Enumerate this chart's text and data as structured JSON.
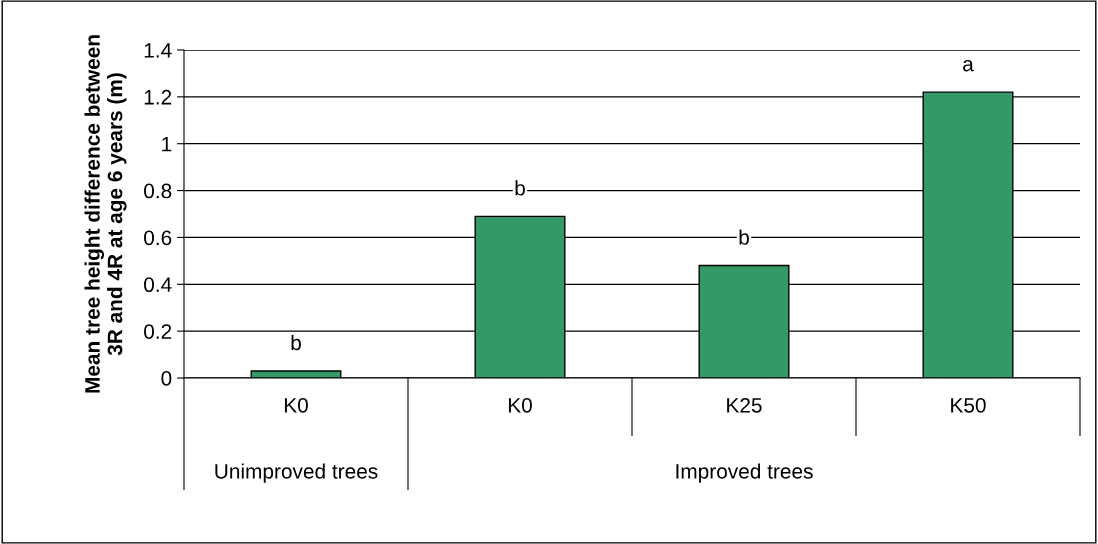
{
  "chart_data": {
    "type": "bar",
    "ylabel": "Mean tree height difference between\n3R and 4R at age 6 years (m)",
    "categories": [
      "K0",
      "K0",
      "K25",
      "K50"
    ],
    "values": [
      0.03,
      0.69,
      0.48,
      1.22
    ],
    "value_labels": [
      "b",
      "b",
      "b",
      "a"
    ],
    "color": "#339966",
    "ylim": [
      0,
      1.4
    ],
    "yticks": [
      0,
      0.2,
      0.4,
      0.6,
      0.8,
      1,
      1.2,
      1.4
    ],
    "grid": "y",
    "annotations": [
      "Unimproved trees",
      "Improved trees"
    ]
  }
}
